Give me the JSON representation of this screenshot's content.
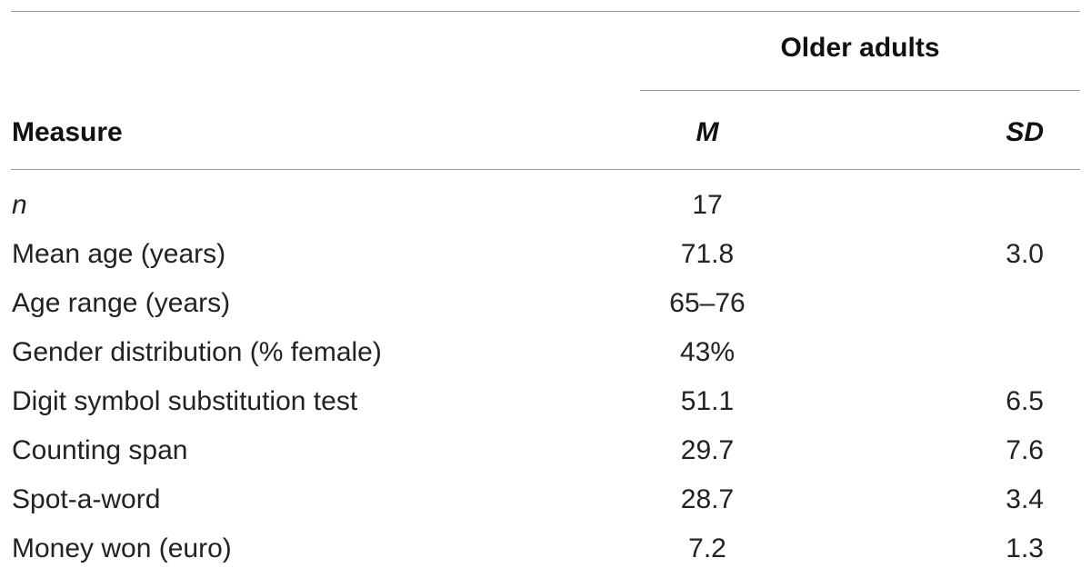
{
  "table": {
    "group_header": "Older adults",
    "headers": {
      "measure": "Measure",
      "mean": "M",
      "sd": "SD"
    },
    "rows": [
      {
        "measure": "n",
        "mean": "17",
        "sd": ""
      },
      {
        "measure": "Mean age (years)",
        "mean": "71.8",
        "sd": "3.0"
      },
      {
        "measure": "Age range (years)",
        "mean": "65–76",
        "sd": ""
      },
      {
        "measure": "Gender distribution (% female)",
        "mean": "43%",
        "sd": ""
      },
      {
        "measure": "Digit symbol substitution test",
        "mean": "51.1",
        "sd": "6.5"
      },
      {
        "measure": "Counting span",
        "mean": "29.7",
        "sd": "7.6"
      },
      {
        "measure": "Spot-a-word",
        "mean": "28.7",
        "sd": "3.4"
      },
      {
        "measure": "Money won (euro)",
        "mean": "7.2",
        "sd": "1.3"
      }
    ]
  }
}
